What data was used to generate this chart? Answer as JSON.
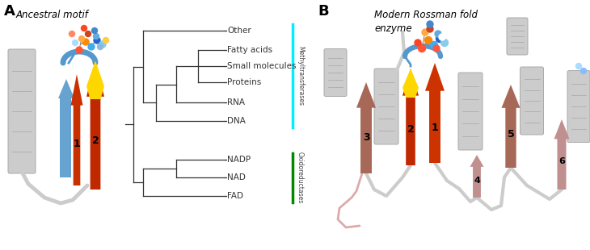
{
  "panel_A_label": "A",
  "panel_B_label": "B",
  "ancestral_title": "Ancestral motif",
  "modern_title": "Modern Rossman fold\nenzyme",
  "tree_leaves": [
    "Other",
    "Fatty acids",
    "Small molecules",
    "Proteins",
    "RNA",
    "DNA",
    "NADP",
    "NAD",
    "FAD"
  ],
  "methyltransferases_label": "Methyltransferases",
  "oxidoreductases_label": "Oxidoreductases",
  "cyan_color": "#00EEFF",
  "green_color": "#008800",
  "text_color": "#444444",
  "bg_color": "#FFFFFF",
  "strand_orange": "#CC3300",
  "strand_brown": "#B07060",
  "helix_gray": "#C8C8C8",
  "coil_gray": "#CCCCCC",
  "yellow_tip": "#FFD700",
  "blue_strand": "#5599CC",
  "mol_colors_A": [
    "#FF5533",
    "#FF8800",
    "#44AAEE",
    "#2266CC",
    "#88CCEE",
    "#FFAA44",
    "#CC4422",
    "#66AADD",
    "#FF4422",
    "#4488CC",
    "#AADDFF",
    "#88BBDD",
    "#FFCC44",
    "#FF8866"
  ],
  "mol_A_x": [
    98,
    106,
    113,
    120,
    127,
    101,
    109,
    119,
    104,
    117,
    93,
    124,
    131,
    89
  ],
  "mol_A_y": [
    248,
    258,
    252,
    260,
    255,
    262,
    268,
    265,
    275,
    272,
    257,
    252,
    260,
    268
  ],
  "mol_A_r": [
    4,
    4,
    4,
    4,
    4,
    3.5,
    3.5,
    3.5,
    3.5,
    3.5,
    3.5,
    3.5,
    3.5,
    3.5
  ],
  "mol_colors_B": [
    "#FF5533",
    "#FF8800",
    "#44AAEE",
    "#2266CC",
    "#88CCEE",
    "#FFAA44",
    "#CC4422",
    "#66AADD",
    "#FF4422",
    "#4488CC",
    "#FFFFFF",
    "#FF5544",
    "#AADDFF",
    "#88BBFF"
  ],
  "mol_B_x": [
    522,
    530,
    537,
    544,
    550,
    526,
    532,
    542,
    517,
    532,
    547,
    540,
    716,
    722
  ],
  "mol_B_y": [
    250,
    260,
    254,
    262,
    257,
    270,
    274,
    268,
    257,
    280,
    264,
    250,
    228,
    222
  ],
  "mol_B_r": [
    4.5,
    4.5,
    4.5,
    4.5,
    4.5,
    4,
    4,
    4,
    4,
    4,
    4,
    4,
    3.5,
    3.5
  ]
}
